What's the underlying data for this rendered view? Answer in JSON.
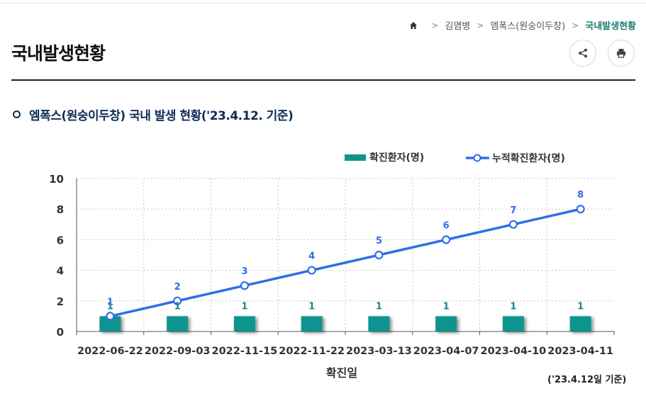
{
  "breadcrumb": {
    "items": [
      "김염병",
      "엠폭스(원숭이두창)",
      "국내발생현황"
    ]
  },
  "page": {
    "title": "국내발생현황"
  },
  "section": {
    "title": "엠폭스(원숭이두창) 국내 발생 현황('23.4.12. 기준)"
  },
  "note": "('23.4.12일 기준)",
  "colors": {
    "bar": "#0f9490",
    "line": "#2f6ee8",
    "label": "#2f6ee8",
    "bar_label": "#0f8a85",
    "accent": "#1a7d70"
  },
  "chart_data": {
    "type": "bar",
    "title": "",
    "xlabel": "확진일",
    "ylabel": "",
    "ylim": [
      0,
      10
    ],
    "yticks": [
      0,
      2,
      4,
      6,
      8,
      10
    ],
    "categories": [
      "2022-06-22",
      "2022-09-03",
      "2022-11-15",
      "2022-11-22",
      "2023-03-13",
      "2023-04-07",
      "2023-04-10",
      "2023-04-11"
    ],
    "series": [
      {
        "name": "확진환자(명)",
        "type": "bar",
        "values": [
          1,
          1,
          1,
          1,
          1,
          1,
          1,
          1
        ]
      },
      {
        "name": "누적확진환자(명)",
        "type": "line",
        "values": [
          1,
          2,
          3,
          4,
          5,
          6,
          7,
          8
        ]
      }
    ],
    "legend": "top-right",
    "grid": true
  }
}
